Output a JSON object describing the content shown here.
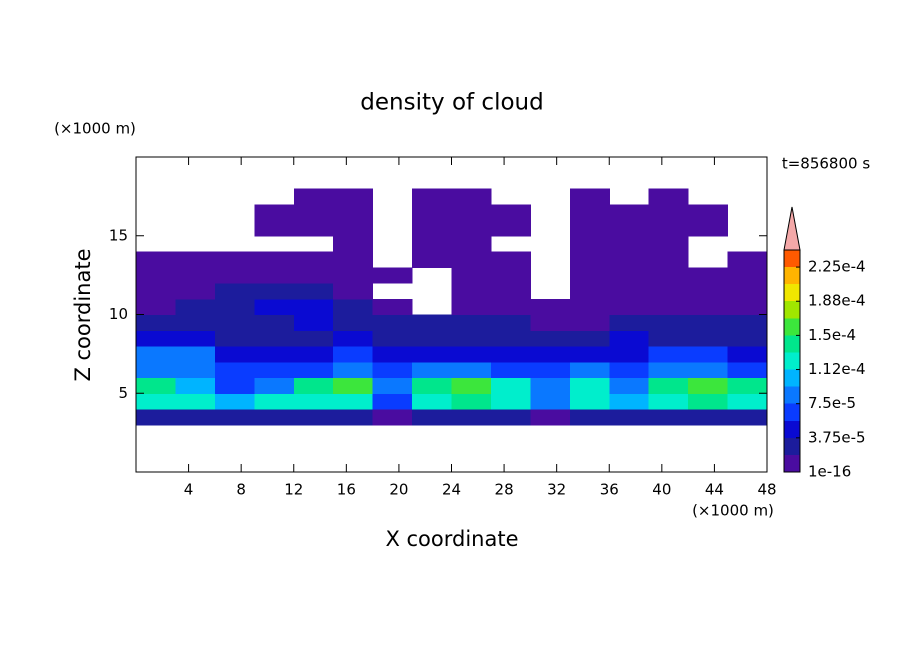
{
  "chart_data": {
    "type": "contour",
    "title": "density of cloud",
    "x_label": "X coordinate",
    "y_label": "Z coordinate",
    "x_unit": "(×1000 m)",
    "y_unit": "(×1000 m)",
    "annotation": "t=856800 s",
    "xlim": [
      0,
      48
    ],
    "ylim": [
      0,
      20
    ],
    "xticks": [
      4,
      8,
      12,
      16,
      20,
      24,
      28,
      32,
      36,
      40,
      44,
      48
    ],
    "yticks": [
      5,
      10,
      15
    ],
    "x_edges": [
      0,
      3,
      6,
      9,
      12,
      15,
      18,
      21,
      24,
      27,
      30,
      33,
      36,
      39,
      42,
      45,
      48
    ],
    "z_edges": [
      3,
      4,
      5,
      6,
      7,
      8,
      9,
      10,
      11,
      12,
      13,
      14,
      15,
      16,
      17,
      18
    ],
    "values": [
      [
        2.5e-05,
        2.5e-05,
        2.5e-05,
        2.5e-05,
        2.5e-05,
        2.5e-05,
        5e-06,
        2.5e-05,
        2.5e-05,
        2.5e-05,
        5e-06,
        2.5e-05,
        2.5e-05,
        2.5e-05,
        2.5e-05,
        2.5e-05
      ],
      [
        0.00012,
        0.00012,
        0.0001,
        0.00012,
        0.00012,
        0.00012,
        6e-05,
        0.00012,
        0.00014,
        0.00012,
        8e-05,
        0.00012,
        0.0001,
        0.00012,
        0.00014,
        0.00012
      ],
      [
        0.00014,
        0.0001,
        6e-05,
        8e-05,
        0.00014,
        0.00016,
        8e-05,
        0.00014,
        0.00016,
        0.00012,
        8e-05,
        0.00012,
        8e-05,
        0.00014,
        0.00016,
        0.00014
      ],
      [
        8e-05,
        8e-05,
        6e-05,
        6e-05,
        6e-05,
        8e-05,
        6e-05,
        8e-05,
        8e-05,
        6e-05,
        6e-05,
        8e-05,
        6e-05,
        8e-05,
        8e-05,
        6e-05
      ],
      [
        8e-05,
        8e-05,
        4.5e-05,
        4.5e-05,
        4.5e-05,
        6e-05,
        4.5e-05,
        4.5e-05,
        4.5e-05,
        4.5e-05,
        4.5e-05,
        4.5e-05,
        4.5e-05,
        6e-05,
        6e-05,
        4.5e-05
      ],
      [
        4.5e-05,
        4.5e-05,
        2.5e-05,
        2.5e-05,
        2.5e-05,
        4.5e-05,
        2.5e-05,
        2.5e-05,
        2.5e-05,
        2.5e-05,
        2.5e-05,
        2.5e-05,
        4.5e-05,
        2.5e-05,
        2.5e-05,
        2.5e-05
      ],
      [
        2.5e-05,
        2.5e-05,
        2.5e-05,
        2.5e-05,
        4.5e-05,
        2.5e-05,
        2.5e-05,
        2.5e-05,
        2.5e-05,
        2.5e-05,
        5e-06,
        5e-06,
        2.5e-05,
        2.5e-05,
        2.5e-05,
        2.5e-05
      ],
      [
        5e-06,
        2.5e-05,
        2.5e-05,
        4.5e-05,
        4.5e-05,
        2.5e-05,
        5e-06,
        null,
        5e-06,
        5e-06,
        5e-06,
        5e-06,
        5e-06,
        5e-06,
        5e-06,
        5e-06
      ],
      [
        5e-06,
        5e-06,
        2.5e-05,
        2.5e-05,
        2.5e-05,
        5e-06,
        null,
        null,
        5e-06,
        5e-06,
        null,
        5e-06,
        5e-06,
        5e-06,
        5e-06,
        5e-06
      ],
      [
        5e-06,
        5e-06,
        5e-06,
        5e-06,
        5e-06,
        5e-06,
        5e-06,
        null,
        5e-06,
        5e-06,
        null,
        5e-06,
        5e-06,
        5e-06,
        5e-06,
        5e-06
      ],
      [
        5e-06,
        5e-06,
        5e-06,
        5e-06,
        5e-06,
        5e-06,
        null,
        5e-06,
        5e-06,
        5e-06,
        null,
        5e-06,
        5e-06,
        5e-06,
        null,
        5e-06
      ],
      [
        null,
        null,
        null,
        null,
        null,
        5e-06,
        null,
        5e-06,
        5e-06,
        null,
        null,
        5e-06,
        5e-06,
        5e-06,
        null,
        null
      ],
      [
        null,
        null,
        null,
        5e-06,
        5e-06,
        5e-06,
        null,
        5e-06,
        5e-06,
        5e-06,
        null,
        5e-06,
        5e-06,
        5e-06,
        5e-06,
        null
      ],
      [
        null,
        null,
        null,
        5e-06,
        5e-06,
        5e-06,
        null,
        5e-06,
        5e-06,
        5e-06,
        null,
        5e-06,
        5e-06,
        5e-06,
        5e-06,
        null
      ],
      [
        null,
        null,
        null,
        null,
        5e-06,
        5e-06,
        null,
        5e-06,
        5e-06,
        null,
        null,
        5e-06,
        null,
        5e-06,
        null,
        null
      ]
    ],
    "colorbar": {
      "levels": [
        1e-16,
        1.875e-05,
        3.75e-05,
        5.625e-05,
        7.5e-05,
        9.375e-05,
        0.0001125,
        0.00013125,
        0.00015,
        0.00016875,
        0.0001875,
        0.00020625,
        0.000225,
        0.00024375
      ],
      "colors": [
        "#4a0ca0",
        "#1c1c9c",
        "#0a0ad2",
        "#0a3cff",
        "#0a78ff",
        "#00b4ff",
        "#00eecc",
        "#00e68c",
        "#3ce63c",
        "#a0e600",
        "#f0e600",
        "#ffb400",
        "#ff5a00"
      ],
      "extend_color": "#f4a8a8",
      "ticks": [
        {
          "value": 1e-16,
          "label": "1e-16"
        },
        {
          "value": 3.75e-05,
          "label": "3.75e-5"
        },
        {
          "value": 7.5e-05,
          "label": "7.5e-5"
        },
        {
          "value": 0.0001125,
          "label": "1.12e-4"
        },
        {
          "value": 0.00015,
          "label": "1.5e-4"
        },
        {
          "value": 0.0001875,
          "label": "1.88e-4"
        },
        {
          "value": 0.000225,
          "label": "2.25e-4"
        }
      ]
    }
  }
}
